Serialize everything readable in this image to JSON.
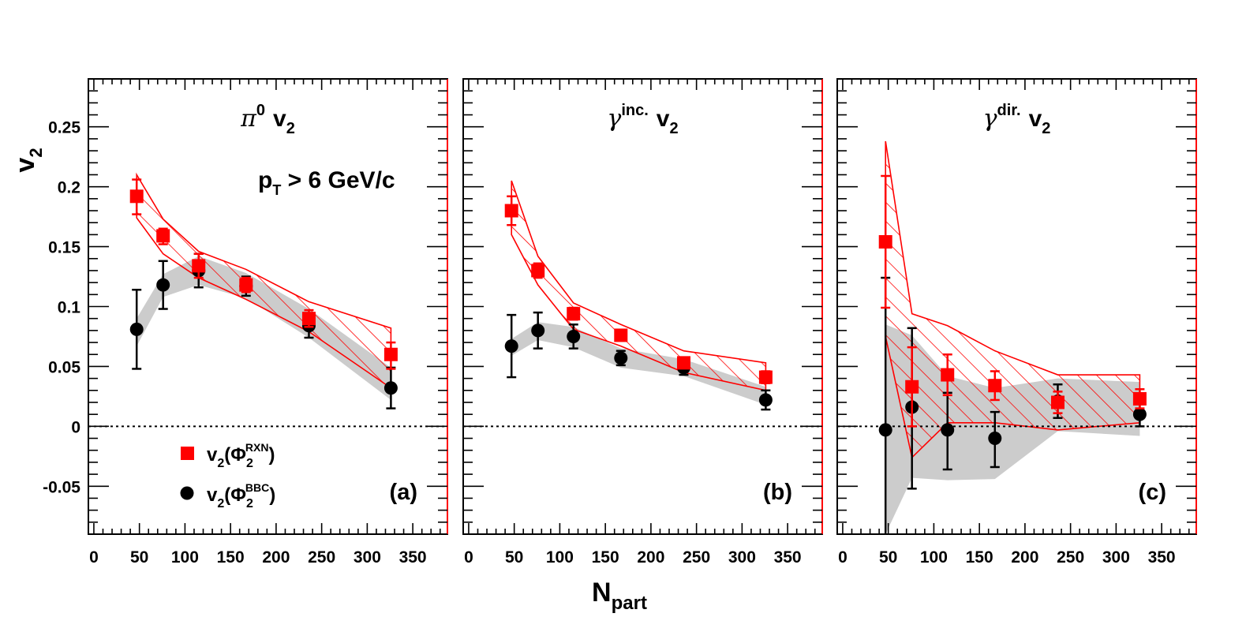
{
  "chart_data": {
    "type": "scatter",
    "xlabel": {
      "main": "N",
      "sub": "part"
    },
    "ylabel": {
      "main": "v",
      "sub": "2"
    },
    "xlim": [
      -6,
      388
    ],
    "ylim": [
      -0.09,
      0.29
    ],
    "x_ticks": [
      "0",
      "50",
      "100",
      "150",
      "200",
      "250",
      "300",
      "350"
    ],
    "y_ticks": [
      {
        "value": -0.05,
        "label": "-0.05"
      },
      {
        "value": 0,
        "label": "0"
      },
      {
        "value": 0.05,
        "label": "0.05"
      },
      {
        "value": 0.1,
        "label": "0.1"
      },
      {
        "value": 0.15,
        "label": "0.15"
      },
      {
        "value": 0.2,
        "label": "0.2"
      },
      {
        "value": 0.25,
        "label": "0.25"
      }
    ],
    "zero_line": "dotted",
    "colors": {
      "rxn": "#ff0000",
      "bbc": "#000000",
      "bbc_band": "#cccccc"
    },
    "legend": {
      "rxn": {
        "marker": "square",
        "base": "v",
        "sub": "2",
        "open": "(Φ",
        "inner_sub": "2",
        "sup": "RXN",
        "close": ")"
      },
      "bbc": {
        "marker": "circle",
        "base": "v",
        "sub": "2",
        "open": "(Φ",
        "inner_sub": "2",
        "sup": "BBC",
        "close": ")"
      }
    },
    "panels": [
      {
        "title": {
          "base": "π",
          "sup": "0",
          "rest": "v",
          "sub": "2"
        },
        "letter": "(a)",
        "annotation": {
          "base": "p",
          "sub": "T",
          "rest": " > 6 GeV/c"
        },
        "rxn": {
          "x": [
            47,
            76,
            115,
            167,
            236,
            326
          ],
          "y": [
            0.192,
            0.159,
            0.134,
            0.118,
            0.09,
            0.06
          ],
          "err_low": [
            0.015,
            0.007,
            0.01,
            0.006,
            0.007,
            0.012
          ],
          "err_high": [
            0.014,
            0.006,
            0.01,
            0.006,
            0.007,
            0.01
          ],
          "band_upper": [
            0.21,
            0.173,
            0.146,
            0.131,
            0.104,
            0.082
          ],
          "band_lower": [
            0.174,
            0.144,
            0.124,
            0.106,
            0.079,
            0.032
          ]
        },
        "bbc": {
          "x": [
            47,
            76,
            115,
            167,
            236,
            326
          ],
          "y": [
            0.081,
            0.118,
            0.13,
            0.117,
            0.084,
            0.032
          ],
          "err_low": [
            0.033,
            0.02,
            0.014,
            0.008,
            0.01,
            0.017
          ],
          "err_high": [
            0.033,
            0.02,
            0.014,
            0.008,
            0.01,
            0.017
          ],
          "band_upper": [
            0.09,
            0.127,
            0.142,
            0.128,
            0.098,
            0.049
          ],
          "band_lower": [
            0.067,
            0.108,
            0.118,
            0.107,
            0.074,
            0.022
          ]
        }
      },
      {
        "title": {
          "base": "γ",
          "sup": "inc.",
          "rest": "v",
          "sub": "2"
        },
        "letter": "(b)",
        "rxn": {
          "x": [
            47,
            76,
            115,
            167,
            236,
            326
          ],
          "y": [
            0.18,
            0.13,
            0.094,
            0.076,
            0.053,
            0.041
          ],
          "err_low": [
            0.012,
            0.006,
            0.005,
            0.004,
            0.004,
            0.005
          ],
          "err_high": [
            0.012,
            0.006,
            0.005,
            0.004,
            0.004,
            0.005
          ],
          "band_upper": [
            0.205,
            0.142,
            0.103,
            0.085,
            0.063,
            0.053
          ],
          "band_lower": [
            0.16,
            0.118,
            0.081,
            0.067,
            0.045,
            0.03
          ]
        },
        "bbc": {
          "x": [
            47,
            76,
            115,
            167,
            236,
            326
          ],
          "y": [
            0.067,
            0.08,
            0.075,
            0.057,
            0.049,
            0.022
          ],
          "err_low": [
            0.026,
            0.015,
            0.01,
            0.006,
            0.006,
            0.008
          ],
          "err_high": [
            0.026,
            0.015,
            0.01,
            0.006,
            0.006,
            0.008
          ],
          "band_upper": [
            0.073,
            0.087,
            0.083,
            0.065,
            0.056,
            0.033
          ],
          "band_lower": [
            0.059,
            0.072,
            0.066,
            0.049,
            0.042,
            0.018
          ]
        }
      },
      {
        "title": {
          "base": "γ",
          "sup": "dir.",
          "rest": "v",
          "sub": "2"
        },
        "letter": "(c)",
        "rxn": {
          "x": [
            47,
            76,
            115,
            167,
            236,
            326
          ],
          "y": [
            0.154,
            0.033,
            0.043,
            0.034,
            0.02,
            0.023
          ],
          "err_low": [
            0.055,
            0.033,
            0.017,
            0.012,
            0.009,
            0.008
          ],
          "err_high": [
            0.055,
            0.033,
            0.017,
            0.012,
            0.009,
            0.008
          ],
          "band_upper": [
            0.238,
            0.094,
            0.084,
            0.063,
            0.043,
            0.043
          ],
          "band_lower": [
            0.075,
            -0.026,
            0.003,
            0.003,
            -0.003,
            0.003
          ]
        },
        "bbc": {
          "x": [
            47,
            76,
            115,
            167,
            236,
            326
          ],
          "y": [
            -0.003,
            0.016,
            -0.003,
            -0.01,
            0.021,
            0.01
          ],
          "err_low": [
            0.13,
            0.068,
            0.033,
            0.024,
            0.014,
            0.01
          ],
          "err_high": [
            0.127,
            0.066,
            0.031,
            0.022,
            0.014,
            0.01
          ],
          "band_upper": [
            0.085,
            0.076,
            0.042,
            0.032,
            0.04,
            0.037
          ],
          "band_lower": [
            -0.09,
            -0.043,
            -0.045,
            -0.044,
            -0.004,
            -0.008
          ]
        }
      }
    ]
  }
}
